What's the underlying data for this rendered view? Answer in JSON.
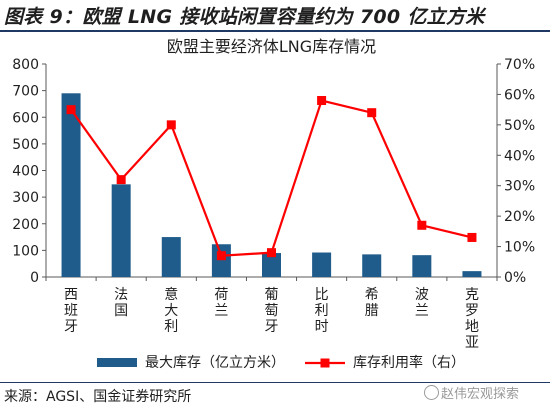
{
  "figure_title": "图表 9：欧盟 LNG 接收站闲置容量约为 700 亿立方米",
  "source": "来源：AGSI、国金证券研究所",
  "watermark": "赵伟宏观探索",
  "colors": {
    "bar": "#1f5c8b",
    "line": "#ff0000",
    "rule": "#1f3864"
  },
  "chart_data": {
    "type": "bar",
    "title": "欧盟主要经济体LNG库存情况",
    "categories": [
      "西班牙",
      "法国",
      "意大利",
      "荷兰",
      "葡萄牙",
      "比利时",
      "希腊",
      "波兰",
      "克罗地亚"
    ],
    "series": [
      {
        "name": "最大库存（亿立方米）",
        "type": "bar",
        "axis": "left",
        "values": [
          690,
          348,
          150,
          123,
          90,
          92,
          85,
          82,
          22
        ]
      },
      {
        "name": "库存利用率（右）",
        "type": "line",
        "axis": "right",
        "values": [
          55,
          32,
          50,
          7,
          8,
          58,
          54,
          17,
          13
        ]
      }
    ],
    "y_left": {
      "min": 0,
      "max": 800,
      "ticks": [
        "0",
        "100",
        "200",
        "300",
        "400",
        "500",
        "600",
        "700",
        "800"
      ]
    },
    "y_right": {
      "min": 0,
      "max": 70,
      "ticks": [
        "0%",
        "10%",
        "20%",
        "30%",
        "40%",
        "50%",
        "60%",
        "70%"
      ]
    },
    "grid": false,
    "legend_position": "bottom"
  }
}
